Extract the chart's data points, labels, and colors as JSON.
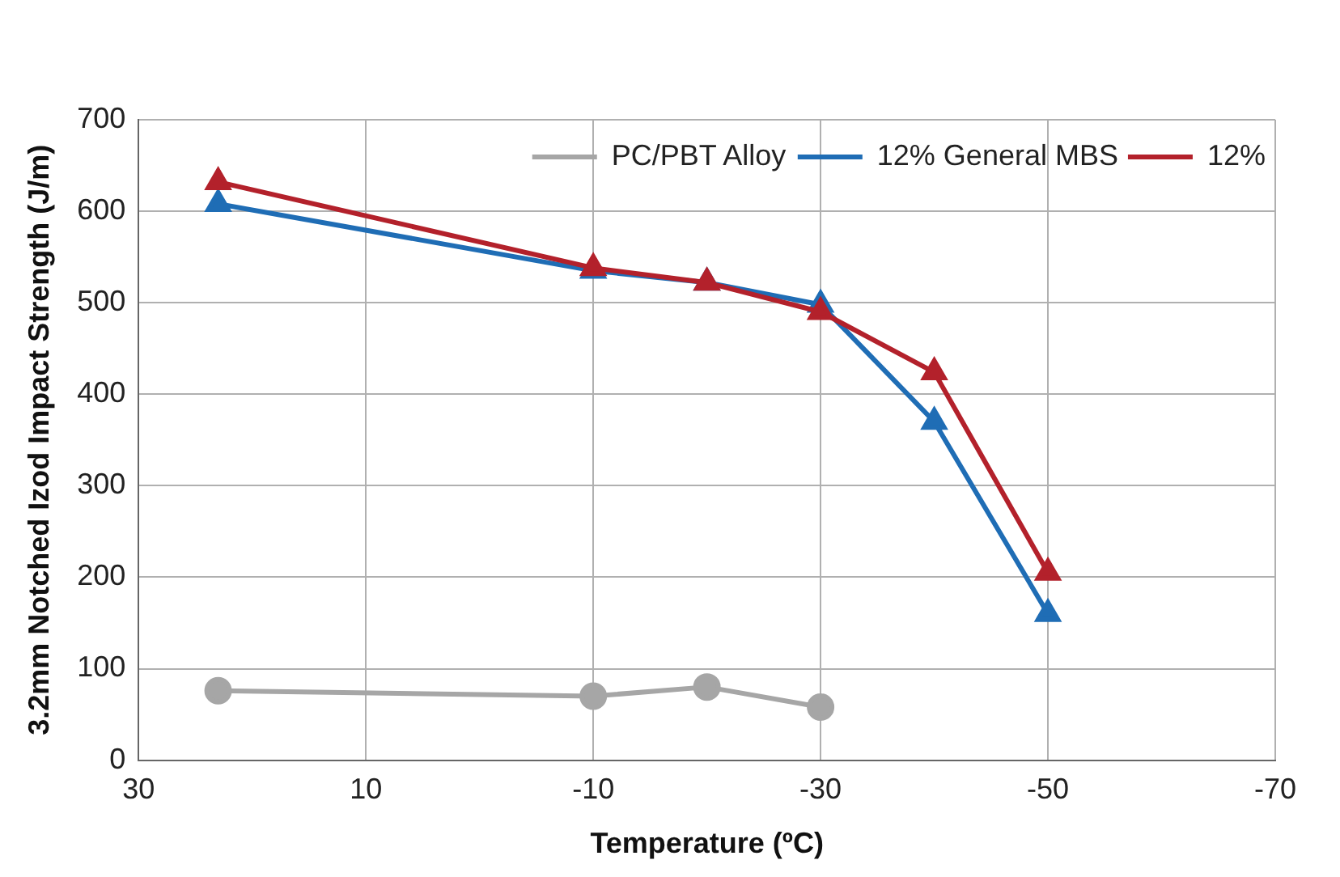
{
  "chart_data": {
    "type": "line",
    "xlabel": "Temperature (ºC)",
    "ylabel": "3.2mm Notched Izod Impact Strength (J/m)",
    "xlim": [
      30,
      -70
    ],
    "xticks": [
      30,
      10,
      -10,
      -30,
      -50,
      -70
    ],
    "ylim": [
      0,
      700
    ],
    "yticks": [
      0,
      100,
      200,
      300,
      400,
      500,
      600,
      700
    ],
    "grid": true,
    "legend": "top right",
    "series": [
      {
        "name": "PC/PBT Alloy",
        "color": "#a6a6a6",
        "marker": "circle",
        "x": [
          23,
          -10,
          -20,
          -30
        ],
        "values": [
          76,
          70,
          80,
          58
        ]
      },
      {
        "name": "12% General MBS",
        "color": "#1f6db5",
        "marker": "triangle",
        "x": [
          23,
          -10,
          -20,
          -30,
          -40,
          -50
        ],
        "values": [
          608,
          535,
          522,
          498,
          370,
          160
        ]
      },
      {
        "name": "12%",
        "color": "#b3212b",
        "marker": "triangle",
        "x": [
          23,
          -10,
          -20,
          -30,
          -40,
          -50
        ],
        "values": [
          632,
          538,
          522,
          490,
          424,
          205
        ]
      }
    ]
  }
}
